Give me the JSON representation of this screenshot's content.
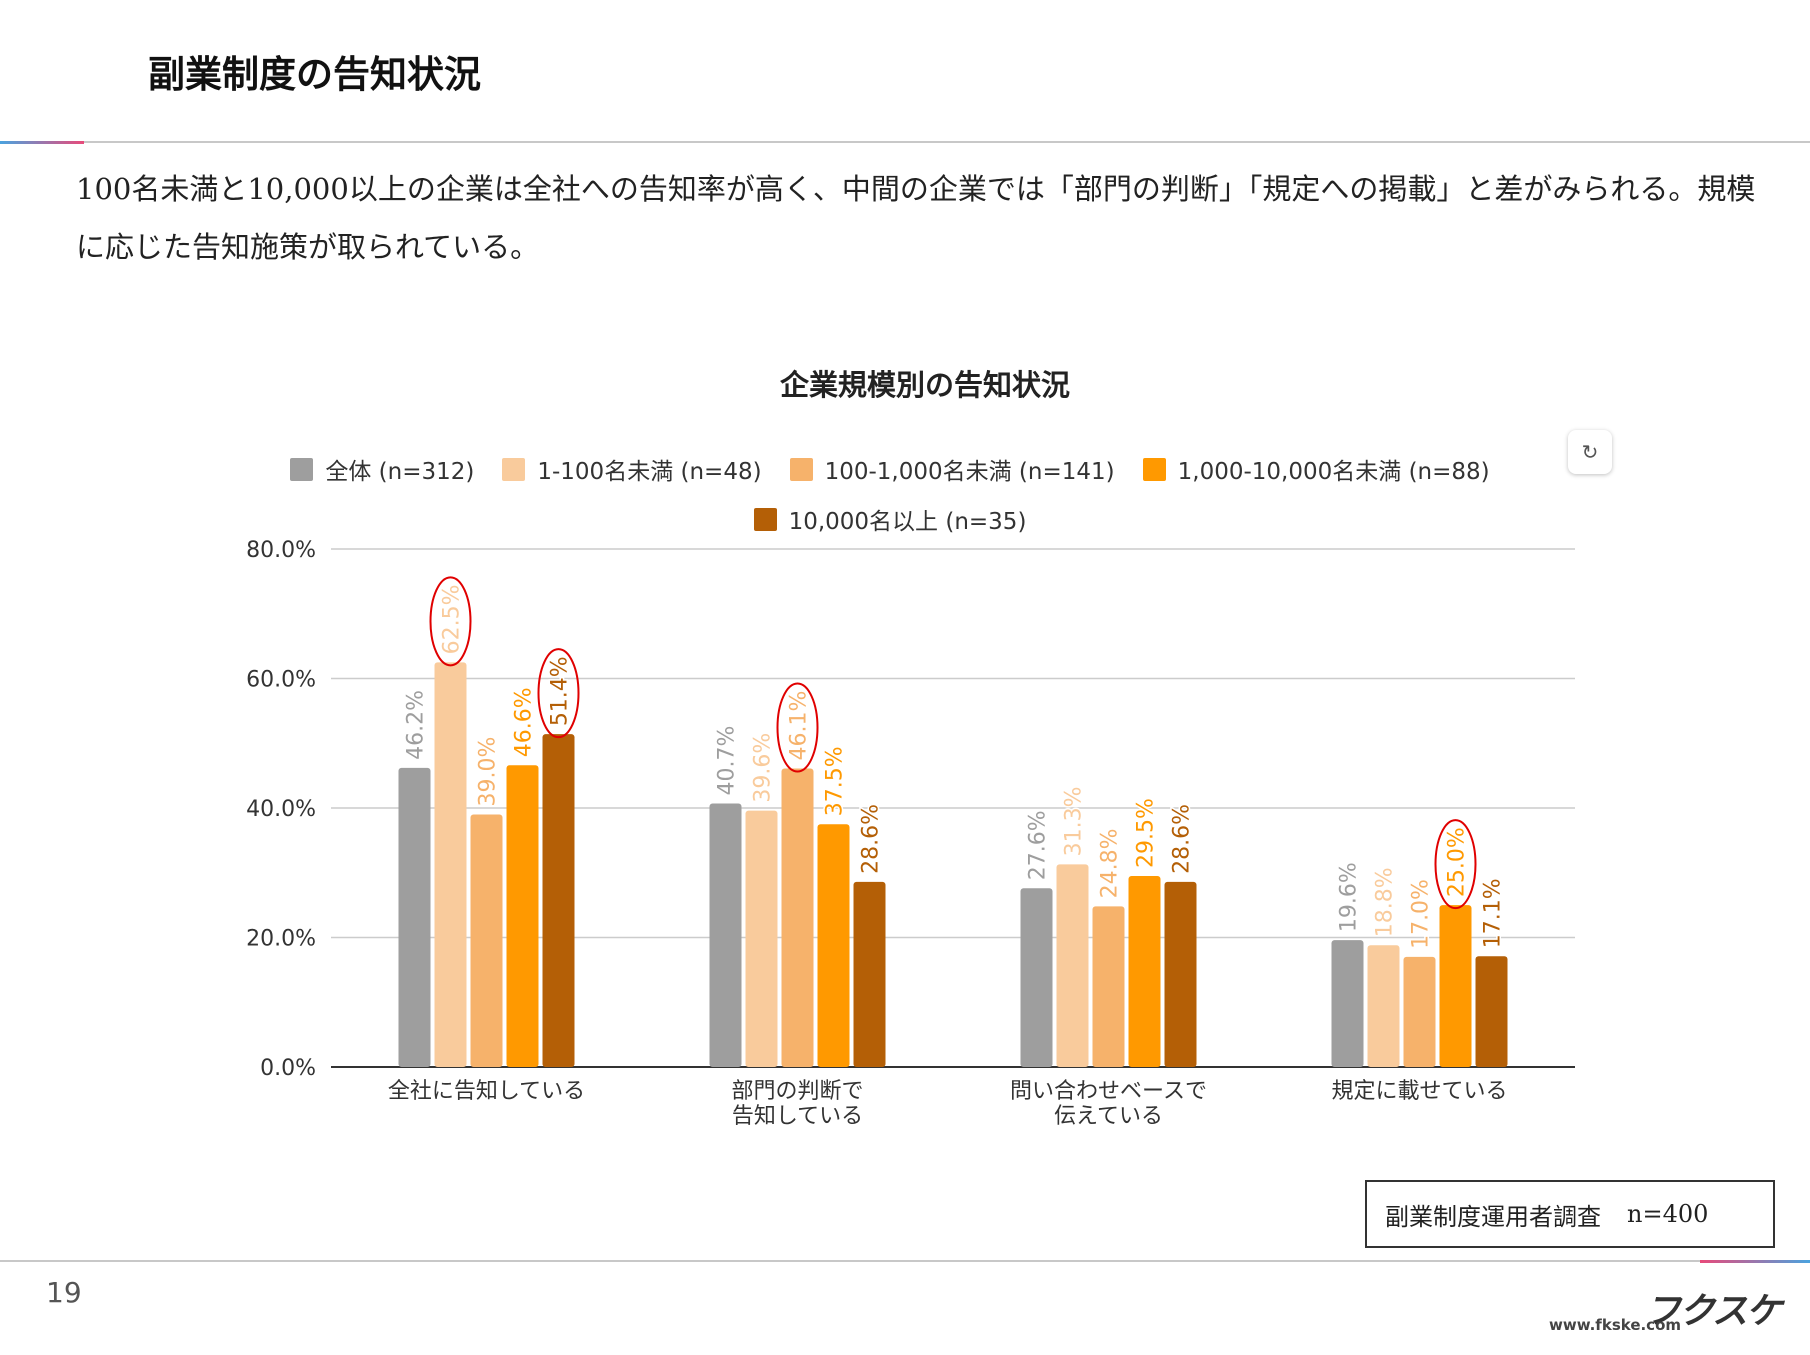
{
  "page": {
    "title": "副業制度の告知状況",
    "lead": "100名未満と10,000以上の企業は全社への告知率が高く、中間の企業では「部門の判断」「規定への掲載」と差がみられる。規模に応じた告知施策が取られている。",
    "source_label": "副業制度運用者調査",
    "source_n": "n=400",
    "page_number": "19",
    "logo_text": "フクスケ",
    "url": "www.fkske.com",
    "refresh_icon": "refresh-icon"
  },
  "chart_data": {
    "type": "bar",
    "title": "企業規模別の告知状況",
    "categories": [
      [
        "全社に告知している"
      ],
      [
        "部門の判断で",
        "告知している"
      ],
      [
        "問い合わせベースで",
        "伝えている"
      ],
      [
        "規定に載せている"
      ]
    ],
    "series": [
      {
        "name": "全体 (n=312)",
        "color": "#9e9e9e",
        "values": [
          46.2,
          40.7,
          27.6,
          19.6
        ]
      },
      {
        "name": "1-100名未満 (n=48)",
        "color": "#f9cb9c",
        "values": [
          62.5,
          39.6,
          31.3,
          18.8
        ]
      },
      {
        "name": "100-1,000名未満 (n=141)",
        "color": "#f6b26b",
        "values": [
          39.0,
          46.1,
          24.8,
          17.0
        ]
      },
      {
        "name": "1,000-10,000名未満 (n=88)",
        "color": "#ff9900",
        "values": [
          46.6,
          37.5,
          29.5,
          25.0
        ]
      },
      {
        "name": "10,000名以上 (n=35)",
        "color": "#b45f06",
        "values": [
          51.4,
          28.6,
          28.6,
          17.1
        ]
      }
    ],
    "ylim": [
      0,
      80
    ],
    "yticks": [
      "0.0%",
      "20.0%",
      "40.0%",
      "60.0%",
      "80.0%"
    ],
    "grid": true,
    "legend": "top",
    "highlighted": [
      [
        0,
        1
      ],
      [
        0,
        4
      ],
      [
        1,
        2
      ],
      [
        3,
        3
      ]
    ],
    "highlight_color": "#e00000"
  }
}
